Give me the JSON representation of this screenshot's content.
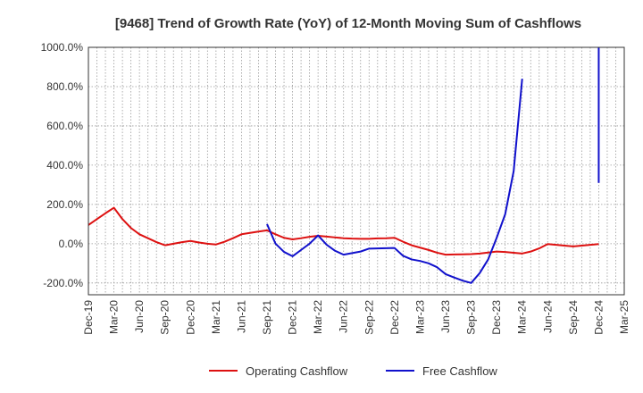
{
  "chart_data": {
    "type": "line",
    "title": "[9468]  Trend of Growth Rate (YoY) of 12-Month Moving Sum of Cashflows",
    "xlabel": "",
    "ylabel": "",
    "ylim": [
      -260,
      1000
    ],
    "y_ticks": [
      1000,
      800,
      600,
      400,
      200,
      0,
      -200
    ],
    "y_tick_labels": [
      "1000.0%",
      "800.0%",
      "600.0%",
      "400.0%",
      "200.0%",
      "0.0%",
      "-200.0%"
    ],
    "x_start": "Dec-19",
    "x_tick_labels": [
      "Dec-19",
      "Mar-20",
      "Jun-20",
      "Sep-20",
      "Dec-20",
      "Mar-21",
      "Jun-21",
      "Sep-21",
      "Dec-21",
      "Mar-22",
      "Jun-22",
      "Sep-22",
      "Dec-22",
      "Mar-23",
      "Jun-23",
      "Sep-23",
      "Dec-23",
      "Mar-24",
      "Jun-24",
      "Sep-24",
      "Dec-24",
      "Mar-25"
    ],
    "grid": true,
    "legend_position": "bottom",
    "series": [
      {
        "name": "Operating Cashflow",
        "color": "#dd1111",
        "points": [
          [
            "Dec-19",
            95
          ],
          [
            "Jan-20",
            125
          ],
          [
            "Feb-20",
            155
          ],
          [
            "Mar-20",
            183
          ],
          [
            "Apr-20",
            125
          ],
          [
            "May-20",
            80
          ],
          [
            "Jun-20",
            48
          ],
          [
            "Jul-20",
            28
          ],
          [
            "Aug-20",
            8
          ],
          [
            "Sep-20",
            -8
          ],
          [
            "Oct-20",
            0
          ],
          [
            "Nov-20",
            8
          ],
          [
            "Dec-20",
            14
          ],
          [
            "Jan-21",
            6
          ],
          [
            "Feb-21",
            0
          ],
          [
            "Mar-21",
            -4
          ],
          [
            "Apr-21",
            10
          ],
          [
            "May-21",
            28
          ],
          [
            "Jun-21",
            48
          ],
          [
            "Jul-21",
            55
          ],
          [
            "Aug-21",
            62
          ],
          [
            "Sep-21",
            68
          ],
          [
            "Oct-21",
            48
          ],
          [
            "Nov-21",
            30
          ],
          [
            "Dec-21",
            22
          ],
          [
            "Jan-22",
            28
          ],
          [
            "Feb-22",
            35
          ],
          [
            "Mar-22",
            40
          ],
          [
            "Apr-22",
            36
          ],
          [
            "May-22",
            32
          ],
          [
            "Jun-22",
            28
          ],
          [
            "Jul-22",
            26
          ],
          [
            "Aug-22",
            25
          ],
          [
            "Sep-22",
            25
          ],
          [
            "Oct-22",
            27
          ],
          [
            "Nov-22",
            28
          ],
          [
            "Dec-22",
            30
          ],
          [
            "Jan-23",
            10
          ],
          [
            "Feb-23",
            -8
          ],
          [
            "Mar-23",
            -20
          ],
          [
            "Apr-23",
            -32
          ],
          [
            "May-23",
            -46
          ],
          [
            "Jun-23",
            -56
          ],
          [
            "Jul-23",
            -55
          ],
          [
            "Aug-23",
            -54
          ],
          [
            "Sep-23",
            -53
          ],
          [
            "Oct-23",
            -50
          ],
          [
            "Nov-23",
            -45
          ],
          [
            "Dec-23",
            -40
          ],
          [
            "Jan-24",
            -42
          ],
          [
            "Feb-24",
            -46
          ],
          [
            "Mar-24",
            -50
          ],
          [
            "Apr-24",
            -40
          ],
          [
            "May-24",
            -24
          ],
          [
            "Jun-24",
            -2
          ],
          [
            "Jul-24",
            -6
          ],
          [
            "Aug-24",
            -10
          ],
          [
            "Sep-24",
            -14
          ],
          [
            "Oct-24",
            -10
          ],
          [
            "Nov-24",
            -6
          ],
          [
            "Dec-24",
            -2
          ]
        ]
      },
      {
        "name": "Free Cashflow",
        "color": "#1111cc",
        "segments": [
          [
            [
              "Sep-21",
              100
            ],
            [
              "Oct-21",
              0
            ],
            [
              "Nov-21",
              -42
            ],
            [
              "Dec-21",
              -64
            ],
            [
              "Jan-22",
              -32
            ],
            [
              "Feb-22",
              0
            ],
            [
              "Mar-22",
              42
            ],
            [
              "Apr-22",
              -5
            ],
            [
              "May-22",
              -36
            ],
            [
              "Jun-22",
              -56
            ],
            [
              "Jul-22",
              -48
            ],
            [
              "Aug-22",
              -40
            ],
            [
              "Sep-22",
              -25
            ],
            [
              "Oct-22",
              -24
            ],
            [
              "Nov-22",
              -23
            ],
            [
              "Dec-22",
              -22
            ],
            [
              "Jan-23",
              -62
            ],
            [
              "Feb-23",
              -80
            ],
            [
              "Mar-23",
              -88
            ],
            [
              "Apr-23",
              -100
            ],
            [
              "May-23",
              -120
            ],
            [
              "Jun-23",
              -155
            ],
            [
              "Jul-23",
              -172
            ],
            [
              "Aug-23",
              -188
            ],
            [
              "Sep-23",
              -200
            ],
            [
              "Oct-23",
              -150
            ],
            [
              "Nov-23",
              -80
            ],
            [
              "Dec-23",
              30
            ],
            [
              "Jan-24",
              150
            ],
            [
              "Feb-24",
              370
            ],
            [
              "Mar-24",
              840
            ]
          ],
          [
            [
              "Dec-24",
              1000
            ],
            [
              "Dec-24",
              310
            ]
          ]
        ]
      }
    ]
  }
}
